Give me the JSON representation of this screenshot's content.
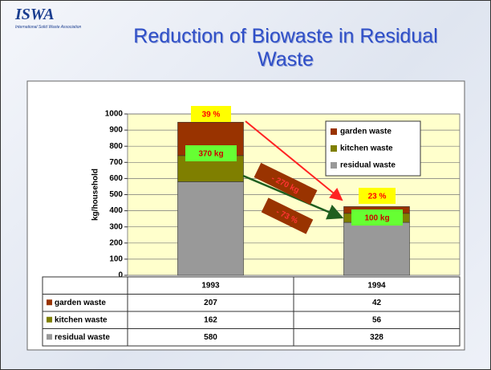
{
  "logo": "ISWA",
  "logo_subtitle": "International Solid Waste Association",
  "chart_data": {
    "type": "bar",
    "stacked": true,
    "title": "Reduction of Biowaste in Residual Waste",
    "y_label": "kg/household",
    "categories": [
      "1993",
      "1994"
    ],
    "series": [
      {
        "name": "residual waste",
        "color": "#999999",
        "values": [
          580,
          328
        ]
      },
      {
        "name": "kitchen waste",
        "color": "#7f7f00",
        "values": [
          162,
          56
        ]
      },
      {
        "name": "garden waste",
        "color": "#993300",
        "values": [
          207,
          42
        ]
      }
    ],
    "ylim": [
      0,
      1000
    ],
    "yticks": [
      0,
      100,
      200,
      300,
      400,
      500,
      600,
      700,
      800,
      900,
      1000
    ],
    "grid": true,
    "legend": "upper right",
    "annotations": [
      "39 %",
      "370 kg",
      "- 270 kg",
      "- 73 %",
      "23 %",
      "100 kg"
    ]
  }
}
